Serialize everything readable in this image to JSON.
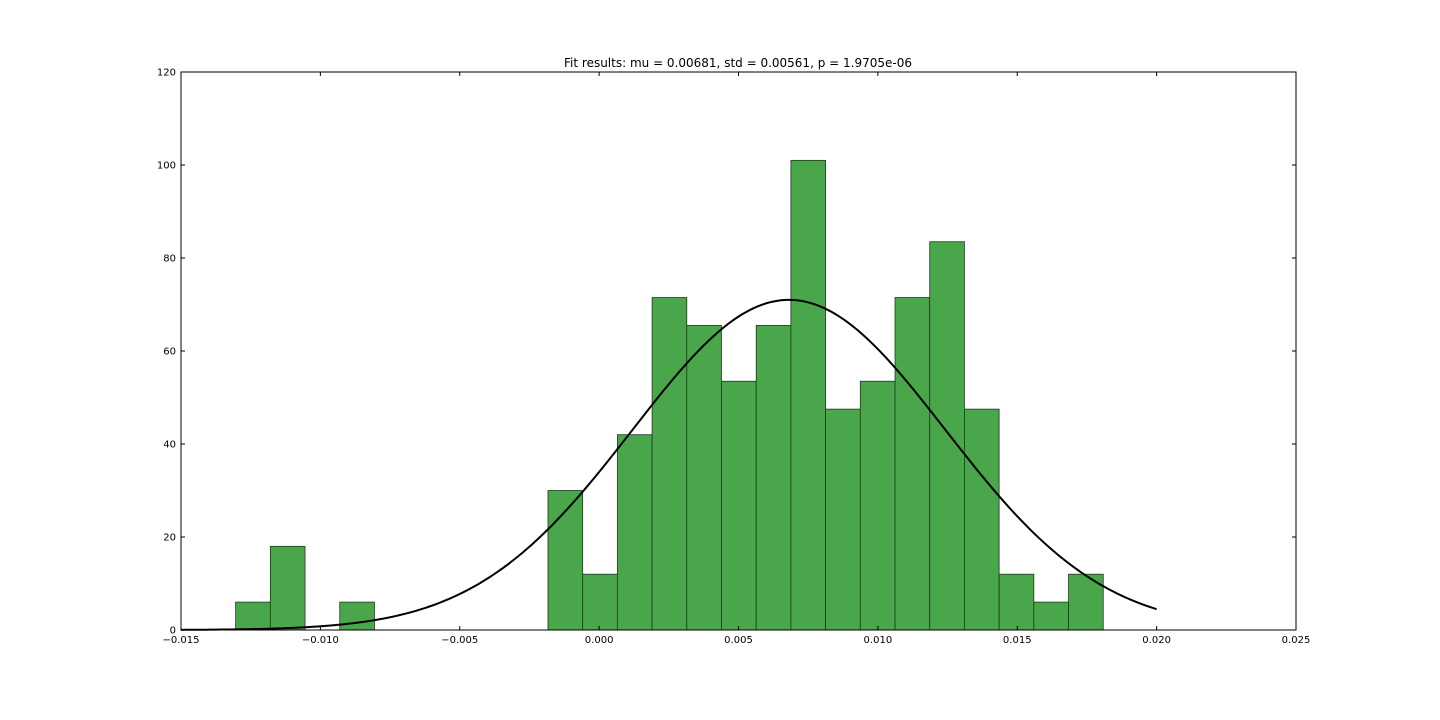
{
  "chart_data": {
    "type": "bar",
    "title": "Fit results: mu = 0.00681,  std = 0.00561, p = 1.9705e-06",
    "xlabel": "",
    "ylabel": "",
    "xlim": [
      -0.015,
      0.025
    ],
    "ylim": [
      0,
      120
    ],
    "x_ticks": [
      -0.015,
      -0.01,
      -0.005,
      0.0,
      0.005,
      0.01,
      0.015,
      0.02,
      0.025
    ],
    "x_tick_labels": [
      "−0.015",
      "−0.010",
      "−0.005",
      "0.000",
      "0.005",
      "0.010",
      "0.015",
      "0.020",
      "0.025"
    ],
    "y_ticks": [
      0,
      20,
      40,
      60,
      80,
      100,
      120
    ],
    "y_tick_labels": [
      "0",
      "20",
      "40",
      "60",
      "80",
      "100",
      "120"
    ],
    "grid": false,
    "histogram": {
      "bin_width": 0.001245,
      "bin_starts": [
        -0.01304,
        -0.011795,
        -0.01055,
        -0.009305,
        -0.00806,
        -0.006815,
        -0.00557,
        -0.004325,
        -0.00308,
        -0.001835,
        -0.00059,
        0.000655,
        0.0019,
        0.003145,
        0.00439,
        0.005635,
        0.00688,
        0.008125,
        0.00937,
        0.010615,
        0.01186,
        0.013105,
        0.01435,
        0.015595,
        0.01684
      ],
      "values": [
        6,
        18,
        0,
        6,
        0,
        0,
        0,
        0,
        0,
        30,
        12,
        42,
        71.5,
        65.5,
        53.5,
        65.5,
        101,
        47.5,
        53.5,
        71.5,
        83.5,
        47.5,
        12,
        6,
        12
      ]
    },
    "fit_curve": {
      "label": "",
      "mu": 0.00681,
      "std": 0.00561,
      "x_range": [
        -0.015,
        0.02
      ]
    },
    "colors": {
      "bar_fill": "#4aa64a",
      "bar_edge": "#1f3a1f",
      "curve": "#000000",
      "axes": "#000000",
      "background": "#ffffff"
    }
  }
}
